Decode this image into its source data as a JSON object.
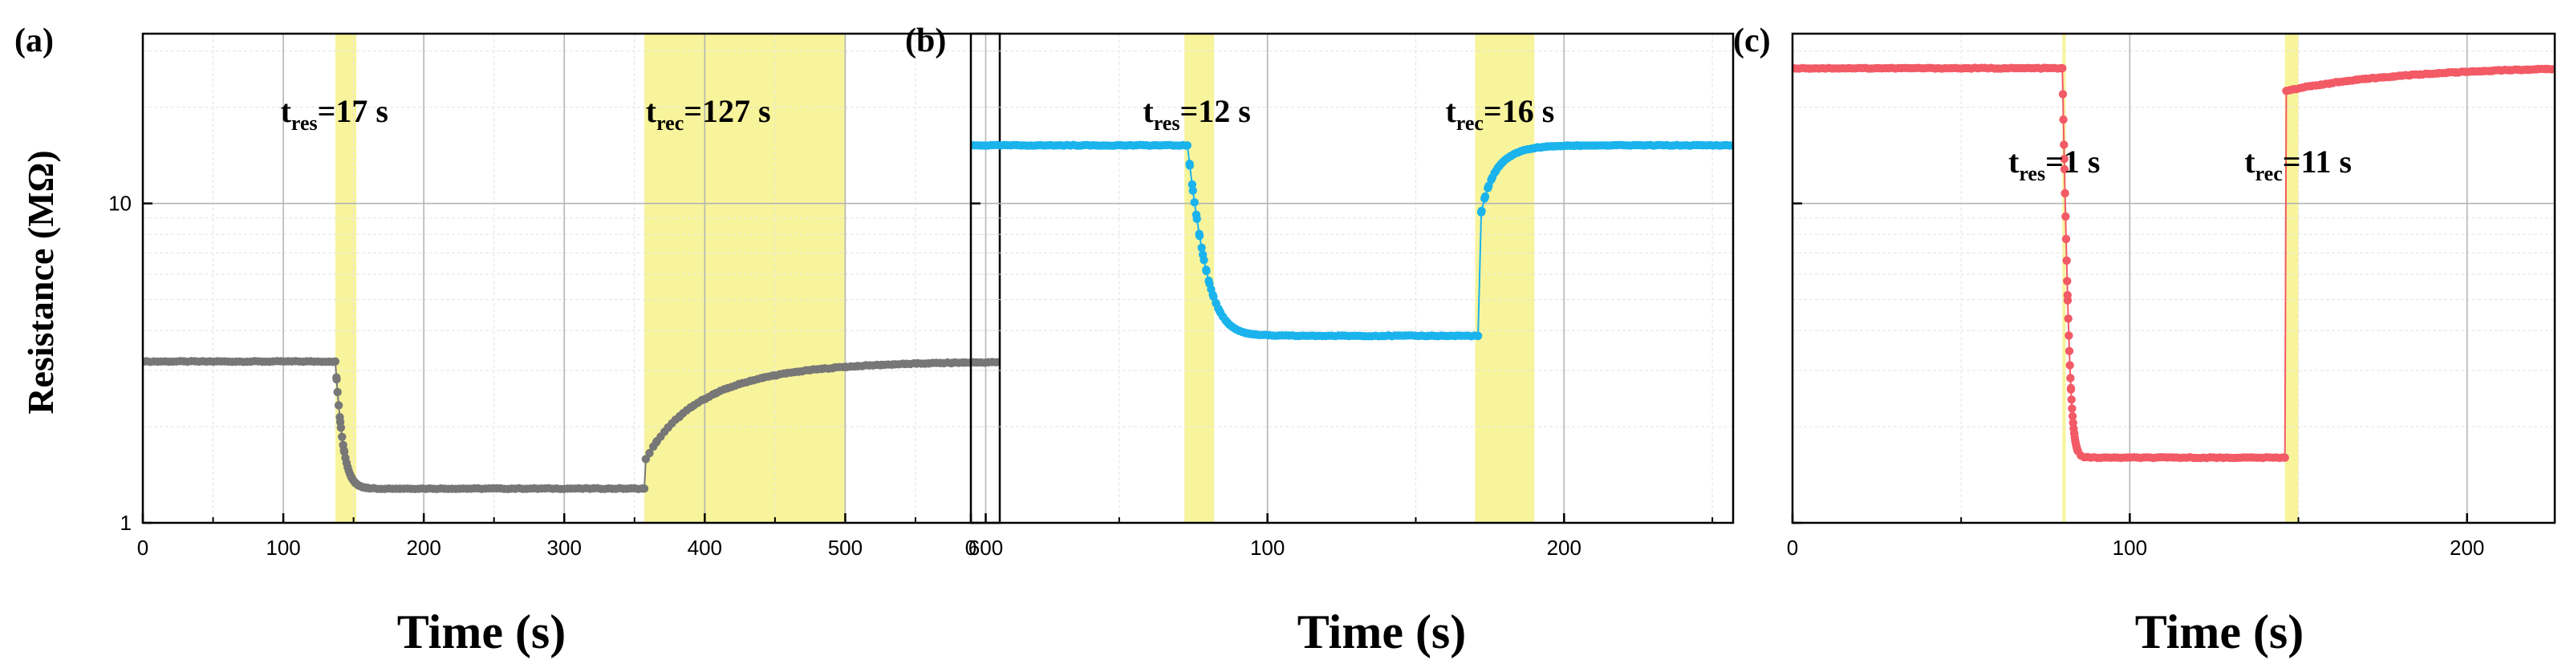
{
  "chart_data": [
    {
      "type": "scatter",
      "panel_label": "(a)",
      "xlabel": "Time (s)",
      "ylabel": "Resistance (MΩ)",
      "yscale": "log",
      "xlim": [
        0,
        610
      ],
      "ylim": [
        1,
        34
      ],
      "xticks": [
        0,
        100,
        200,
        300,
        400,
        500,
        600
      ],
      "yticks": [
        1,
        10
      ],
      "grid": true,
      "color": "#777777",
      "shaded_regions": [
        [
          137,
          152
        ],
        [
          357,
          500
        ]
      ],
      "annotations": [
        {
          "main": "t",
          "sub": "res",
          "rest": "=17 s",
          "x": 98,
          "y": 18
        },
        {
          "main": "t",
          "sub": "rec",
          "rest": "=127 s",
          "x": 358,
          "y": 18
        }
      ],
      "segments": [
        {
          "kind": "flat",
          "t0": 0,
          "t1": 137,
          "v": 3.2
        },
        {
          "kind": "decay",
          "t0": 137,
          "t1": 357,
          "from": 3.2,
          "to": 1.28,
          "tau": 4
        },
        {
          "kind": "rise",
          "t0": 357,
          "t1": 610,
          "from": 1.55,
          "to": 3.2,
          "tau": 55
        }
      ]
    },
    {
      "type": "scatter",
      "panel_label": "(b)",
      "xlabel": "Time (s)",
      "ylabel": "",
      "yscale": "log",
      "xlim": [
        0,
        257
      ],
      "ylim": [
        1,
        34
      ],
      "xticks": [
        0,
        100,
        200
      ],
      "yticks": [],
      "grid": true,
      "color": "#1bb3ec",
      "shaded_regions": [
        [
          72,
          82
        ],
        [
          170,
          190
        ]
      ],
      "annotations": [
        {
          "main": "t",
          "sub": "res",
          "rest": "=12 s",
          "x": 58,
          "y": 18
        },
        {
          "main": "t",
          "sub": "rec",
          "rest": "=16 s",
          "x": 160,
          "y": 18
        }
      ],
      "segments": [
        {
          "kind": "flat",
          "t0": 0,
          "t1": 73,
          "v": 15.2
        },
        {
          "kind": "decay",
          "t0": 73,
          "t1": 171,
          "from": 15.2,
          "to": 3.85,
          "tau": 4
        },
        {
          "kind": "rise",
          "t0": 171,
          "t1": 257,
          "from": 8.2,
          "to": 15.2,
          "tau": 6
        }
      ]
    },
    {
      "type": "scatter",
      "panel_label": "(c)",
      "xlabel": "Time (s)",
      "ylabel": "",
      "yscale": "log",
      "xlim": [
        0,
        226
      ],
      "ylim": [
        1,
        34
      ],
      "xticks": [
        0,
        100,
        200
      ],
      "yticks": [],
      "grid": true,
      "color": "#f25a66",
      "shaded_regions": [
        [
          80,
          81
        ],
        [
          146,
          150
        ]
      ],
      "annotations": [
        {
          "main": "t",
          "sub": "res",
          "rest": "=1 s",
          "x": 64,
          "y": 12.5
        },
        {
          "main": "t",
          "sub": "rec",
          "rest": "=11 s",
          "x": 134,
          "y": 12.5
        }
      ],
      "segments": [
        {
          "kind": "flat",
          "t0": 0,
          "t1": 80,
          "v": 26.5
        },
        {
          "kind": "decay",
          "t0": 80,
          "t1": 146,
          "from": 26.5,
          "to": 1.6,
          "tau": 0.8
        },
        {
          "kind": "rise",
          "t0": 146,
          "t1": 226,
          "from": 22.5,
          "to": 27,
          "tau": 40
        }
      ]
    }
  ]
}
